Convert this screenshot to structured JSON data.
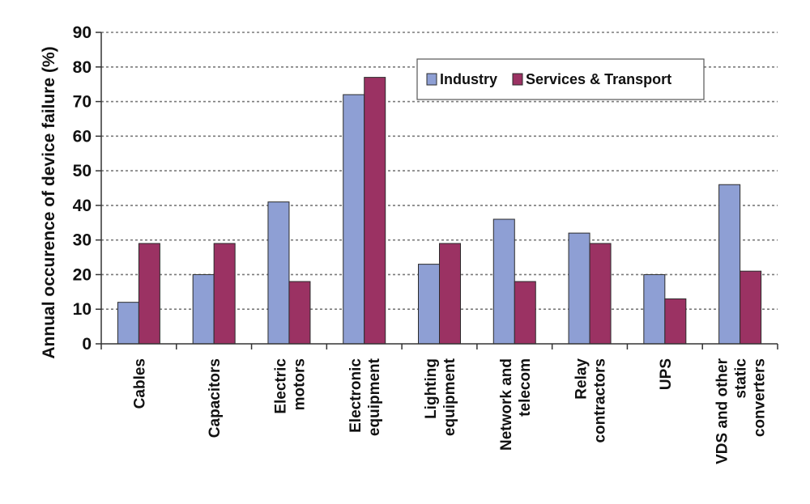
{
  "chart_data": {
    "type": "bar",
    "title": "",
    "xlabel": "",
    "ylabel": "Annual occurence of device failure (%)",
    "ylim": [
      0,
      90
    ],
    "yticks": [
      0,
      10,
      20,
      30,
      40,
      50,
      60,
      70,
      80,
      90
    ],
    "grid": "horizontal dotted",
    "legend_position": "top-right",
    "categories": [
      [
        "Cables"
      ],
      [
        "Capacitors"
      ],
      [
        "Electric",
        "motors"
      ],
      [
        "Electronic",
        "equipment"
      ],
      [
        "Lighting",
        "equipment"
      ],
      [
        "Network and",
        "telecom"
      ],
      [
        "Relay",
        "contractors"
      ],
      [
        "UPS"
      ],
      [
        "VDS and other",
        "static",
        "converters"
      ]
    ],
    "series": [
      {
        "name": "Industry",
        "color": "#8E9FD4",
        "values": [
          12,
          20,
          41,
          72,
          23,
          36,
          32,
          20,
          46
        ]
      },
      {
        "name": "Services & Transport",
        "color": "#9B3263",
        "values": [
          29,
          29,
          18,
          77,
          29,
          18,
          29,
          13,
          21
        ]
      }
    ]
  }
}
